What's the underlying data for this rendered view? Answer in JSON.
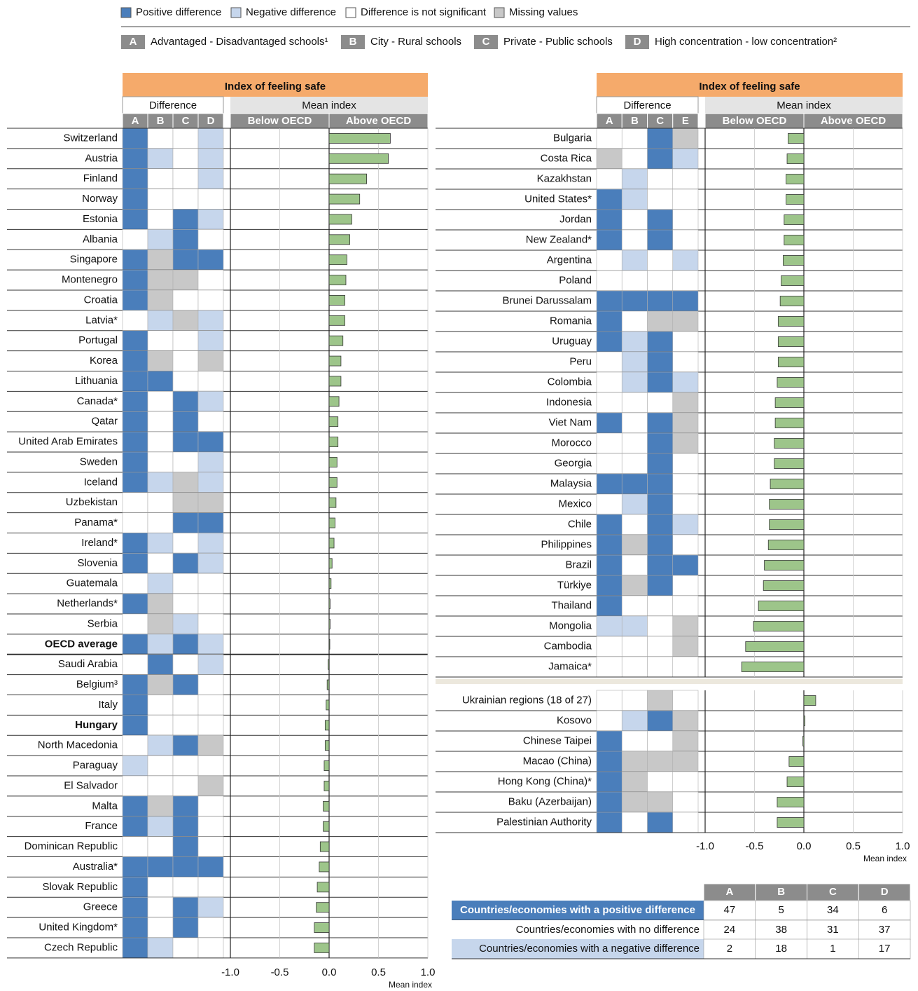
{
  "legend": {
    "items": [
      {
        "label": "Positive difference",
        "color": "#4a7ebb"
      },
      {
        "label": "Negative difference",
        "color": "#c6d6ec"
      },
      {
        "label": "Difference is not significant",
        "color": "#ffffff"
      },
      {
        "label": "Missing values",
        "color": "#c8c8c8"
      }
    ],
    "comparisons": [
      {
        "key": "A",
        "label": "Advantaged - Disadvantaged schools¹"
      },
      {
        "key": "B",
        "label": "City - Rural schools"
      },
      {
        "key": "C",
        "label": "Private - Public schools"
      },
      {
        "key": "D",
        "label": "High concentration - low concentration²"
      }
    ]
  },
  "chart_data": [
    {
      "type": "bar",
      "title": "Index of feeling safe",
      "difference_header": "Difference",
      "value_header": "Mean index",
      "below_label": "Below OECD",
      "above_label": "Above OECD",
      "columns": [
        "A",
        "B",
        "C",
        "D"
      ],
      "xlabel": "Mean index",
      "xlim": [
        -1,
        1
      ],
      "xticks": [
        {
          "value": -1,
          "label": "-1.0"
        },
        -0.5,
        {
          "value": 0,
          "label": "0.0"
        },
        0.5,
        {
          "value": 1,
          "label": "1.0"
        }
      ],
      "color": "#9dc58a",
      "emphasis": [
        25,
        29
      ],
      "categories": [
        "Switzerland",
        "Austria",
        "Finland",
        "Norway",
        "Estonia",
        "Albania",
        "Singapore",
        "Montenegro",
        "Croatia",
        "Latvia*",
        "Portugal",
        "Korea",
        "Lithuania",
        "Canada*",
        "Qatar",
        "United Arab Emirates",
        "Sweden",
        "Iceland",
        "Uzbekistan",
        "Panama*",
        "Ireland*",
        "Slovenia",
        "Guatemala",
        "Netherlands*",
        "Serbia",
        "OECD average",
        "Saudi Arabia",
        "Belgium³",
        "Italy",
        "Hungary",
        "North Macedonia",
        "Paraguay",
        "El Salvador",
        "Malta",
        "France",
        "Dominican Republic",
        "Australia*",
        "Slovak Republic",
        "Greece",
        "United Kingdom*",
        "Czech Republic"
      ],
      "values": [
        0.62,
        0.6,
        0.38,
        0.31,
        0.23,
        0.21,
        0.18,
        0.17,
        0.16,
        0.16,
        0.14,
        0.12,
        0.12,
        0.1,
        0.09,
        0.09,
        0.08,
        0.08,
        0.07,
        0.06,
        0.05,
        0.03,
        0.02,
        0.01,
        0.01,
        0,
        -0.01,
        -0.02,
        -0.03,
        -0.04,
        -0.04,
        -0.05,
        -0.05,
        -0.06,
        -0.06,
        -0.09,
        -0.1,
        -0.12,
        -0.13,
        -0.15,
        -0.15
      ],
      "differences": [
        [
          0,
          2,
          2,
          1
        ],
        [
          0,
          1,
          2,
          1
        ],
        [
          0,
          2,
          2,
          1
        ],
        [
          0,
          2,
          2,
          2
        ],
        [
          0,
          2,
          0,
          1
        ],
        [
          2,
          1,
          0,
          2
        ],
        [
          0,
          3,
          0,
          0
        ],
        [
          0,
          3,
          3,
          2
        ],
        [
          0,
          3,
          2,
          2
        ],
        [
          2,
          1,
          3,
          1
        ],
        [
          0,
          2,
          2,
          1
        ],
        [
          0,
          3,
          2,
          3
        ],
        [
          0,
          0,
          2,
          2
        ],
        [
          0,
          2,
          0,
          1
        ],
        [
          0,
          2,
          0,
          2
        ],
        [
          0,
          2,
          0,
          0
        ],
        [
          0,
          2,
          2,
          1
        ],
        [
          0,
          1,
          3,
          1
        ],
        [
          2,
          2,
          3,
          3
        ],
        [
          2,
          2,
          0,
          0
        ],
        [
          0,
          1,
          2,
          1
        ],
        [
          0,
          2,
          0,
          1
        ],
        [
          2,
          1,
          2,
          2
        ],
        [
          0,
          3,
          2,
          2
        ],
        [
          2,
          3,
          1,
          2
        ],
        [
          0,
          1,
          0,
          1
        ],
        [
          2,
          0,
          2,
          1
        ],
        [
          0,
          3,
          0,
          2
        ],
        [
          0,
          2,
          2,
          2
        ],
        [
          0,
          2,
          2,
          2
        ],
        [
          2,
          1,
          0,
          3
        ],
        [
          1,
          2,
          2,
          2
        ],
        [
          2,
          2,
          2,
          3
        ],
        [
          0,
          3,
          0,
          2
        ],
        [
          0,
          1,
          0,
          2
        ],
        [
          2,
          2,
          0,
          2
        ],
        [
          0,
          0,
          0,
          0
        ],
        [
          0,
          2,
          2,
          2
        ],
        [
          0,
          2,
          0,
          1
        ],
        [
          0,
          2,
          0,
          2
        ],
        [
          0,
          1,
          2,
          2
        ]
      ]
    },
    {
      "type": "bar",
      "title": "Index of feeling safe",
      "difference_header": "Difference",
      "value_header": "Mean index",
      "below_label": "Below OECD",
      "above_label": "Above OECD",
      "columns": [
        "A",
        "B",
        "C",
        "E"
      ],
      "xlabel": "Mean index",
      "xlim": [
        -1,
        1
      ],
      "xticks": [
        {
          "value": -1,
          "label": "-1.0"
        },
        -0.5,
        {
          "value": 0,
          "label": "0.0"
        },
        0.5,
        {
          "value": 1,
          "label": "1.0"
        }
      ],
      "color": "#9dc58a",
      "separator_after": 26,
      "categories": [
        "Bulgaria",
        "Costa Rica",
        "Kazakhstan",
        "United States*",
        "Jordan",
        "New Zealand*",
        "Argentina",
        "Poland",
        "Brunei Darussalam",
        "Romania",
        "Uruguay",
        "Peru",
        "Colombia",
        "Indonesia",
        "Viet Nam",
        "Morocco",
        "Georgia",
        "Malaysia",
        "Mexico",
        "Chile",
        "Philippines",
        "Brazil",
        "Türkiye",
        "Thailand",
        "Mongolia",
        "Cambodia",
        "Jamaica*",
        "Ukrainian regions (18 of 27)",
        "Kosovo",
        "Chinese Taipei",
        "Macao (China)",
        "Hong Kong (China)*",
        "Baku (Azerbaijan)",
        "Palestinian Authority"
      ],
      "values": [
        -0.16,
        -0.17,
        -0.18,
        -0.18,
        -0.2,
        -0.2,
        -0.21,
        -0.23,
        -0.24,
        -0.26,
        -0.26,
        -0.26,
        -0.27,
        -0.29,
        -0.29,
        -0.3,
        -0.3,
        -0.34,
        -0.35,
        -0.35,
        -0.36,
        -0.4,
        -0.41,
        -0.46,
        -0.51,
        -0.59,
        -0.63,
        0.12,
        0.01,
        -0.01,
        -0.15,
        -0.17,
        -0.27,
        -0.27
      ],
      "differences": [
        [
          2,
          2,
          0,
          3
        ],
        [
          3,
          2,
          0,
          1
        ],
        [
          2,
          1,
          2,
          2
        ],
        [
          0,
          1,
          2,
          2
        ],
        [
          0,
          2,
          0,
          2
        ],
        [
          0,
          2,
          0,
          2
        ],
        [
          2,
          1,
          2,
          1
        ],
        [
          2,
          2,
          2,
          2
        ],
        [
          0,
          0,
          0,
          0
        ],
        [
          0,
          2,
          3,
          3
        ],
        [
          0,
          1,
          0,
          2
        ],
        [
          2,
          1,
          0,
          2
        ],
        [
          2,
          1,
          0,
          1
        ],
        [
          2,
          2,
          2,
          3
        ],
        [
          0,
          2,
          0,
          3
        ],
        [
          2,
          2,
          0,
          3
        ],
        [
          2,
          2,
          0,
          2
        ],
        [
          0,
          0,
          0,
          2
        ],
        [
          2,
          1,
          0,
          2
        ],
        [
          0,
          2,
          0,
          1
        ],
        [
          0,
          3,
          0,
          2
        ],
        [
          0,
          2,
          0,
          0
        ],
        [
          0,
          3,
          0,
          2
        ],
        [
          0,
          2,
          2,
          2
        ],
        [
          1,
          1,
          2,
          3
        ],
        [
          2,
          2,
          2,
          3
        ],
        [
          2,
          2,
          2,
          2
        ],
        [
          2,
          2,
          3,
          2
        ],
        [
          2,
          1,
          0,
          3
        ],
        [
          0,
          2,
          2,
          3
        ],
        [
          0,
          3,
          3,
          3
        ],
        [
          0,
          3,
          2,
          2
        ],
        [
          0,
          3,
          3,
          2
        ],
        [
          0,
          2,
          0,
          2
        ]
      ]
    }
  ],
  "summary": {
    "columns": [
      "A",
      "B",
      "C",
      "D"
    ],
    "rows": [
      {
        "label": "Countries/economies with a positive difference",
        "color": "#4a7ebb",
        "values": [
          47,
          5,
          34,
          6
        ]
      },
      {
        "label": "Countries/economies with no difference",
        "color": "#ffffff",
        "values": [
          24,
          38,
          31,
          37
        ]
      },
      {
        "label": "Countries/economies with a negative difference",
        "color": "#c6d6ec",
        "values": [
          2,
          18,
          1,
          17
        ]
      }
    ]
  }
}
